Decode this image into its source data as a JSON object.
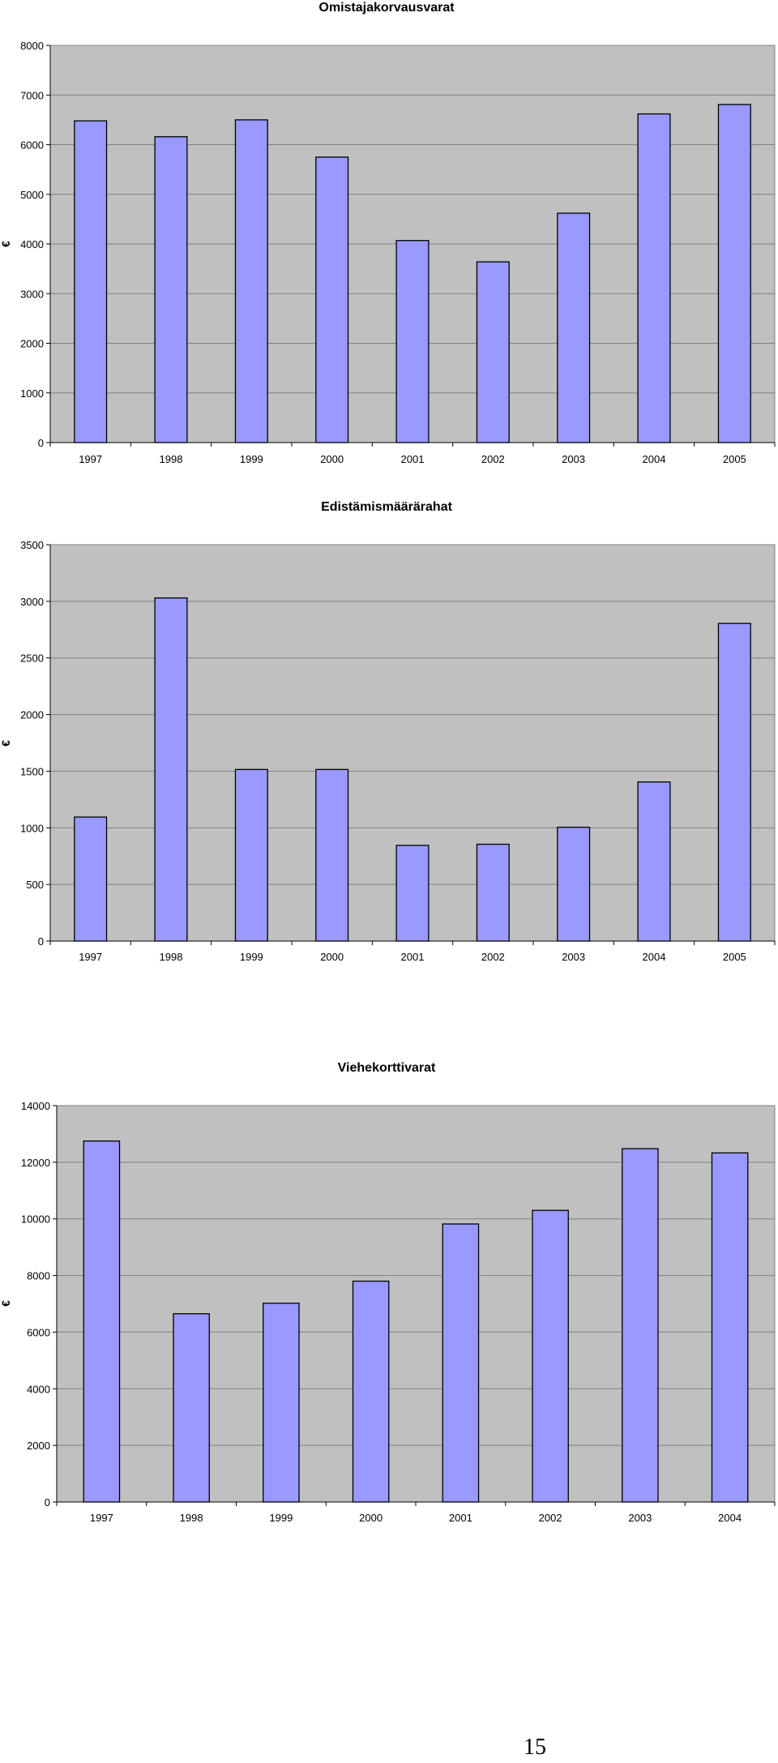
{
  "colors": {
    "plot_background": "#c0c0c0",
    "bar_fill": "#9999ff",
    "bar_stroke": "#000000",
    "gridline": "#808080"
  },
  "page_number": "15",
  "chart_data": [
    {
      "type": "bar",
      "title": "Omistajakorvausvarat",
      "ylabel": "€",
      "xlabel": "",
      "ylim": [
        0,
        8000
      ],
      "yticks": [
        0,
        1000,
        2000,
        3000,
        4000,
        5000,
        6000,
        7000,
        8000
      ],
      "grid": true,
      "categories": [
        "1997",
        "1998",
        "1999",
        "2000",
        "2001",
        "2002",
        "2003",
        "2004",
        "2005"
      ],
      "values": [
        6480,
        6160,
        6500,
        5750,
        4070,
        3640,
        4620,
        6620,
        6810
      ]
    },
    {
      "type": "bar",
      "title": "Edistämismäärärahat",
      "ylabel": "€",
      "xlabel": "",
      "ylim": [
        0,
        3500
      ],
      "yticks": [
        0,
        500,
        1000,
        1500,
        2000,
        2500,
        3000,
        3500
      ],
      "grid": true,
      "categories": [
        "1997",
        "1998",
        "1999",
        "2000",
        "2001",
        "2002",
        "2003",
        "2004",
        "2005"
      ],
      "values": [
        1095,
        3030,
        1515,
        1515,
        845,
        855,
        1005,
        1405,
        2805
      ]
    },
    {
      "type": "bar",
      "title": "Viehekorttivarat",
      "ylabel": "€",
      "xlabel": "",
      "ylim": [
        0,
        14000
      ],
      "yticks": [
        0,
        2000,
        4000,
        6000,
        8000,
        10000,
        12000,
        14000
      ],
      "grid": true,
      "categories": [
        "1997",
        "1998",
        "1999",
        "2000",
        "2001",
        "2002",
        "2003",
        "2004"
      ],
      "values": [
        12750,
        6650,
        7020,
        7800,
        9820,
        10300,
        12480,
        12330
      ]
    }
  ]
}
